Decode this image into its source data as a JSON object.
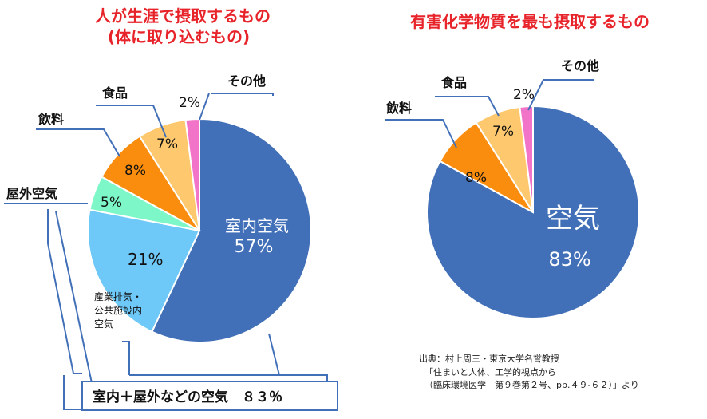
{
  "chart_data": [
    {
      "type": "pie",
      "title": "人が生涯で摂取するもの",
      "subtitle": "(体に取り込むもの)",
      "slices": [
        {
          "label": "室内空気",
          "value": 57,
          "value_label": "57%",
          "color": "#4270b8"
        },
        {
          "label": "産業排気・公共施設内空気",
          "value": 21,
          "value_label": "21%",
          "color": "#6ec8f8"
        },
        {
          "label": "屋外空気",
          "value": 5,
          "value_label": "5%",
          "color": "#7df7c8"
        },
        {
          "label": "飲料",
          "value": 8,
          "value_label": "8%",
          "color": "#fb8d0e"
        },
        {
          "label": "食品",
          "value": 7,
          "value_label": "7%",
          "color": "#fdc86e"
        },
        {
          "label": "その他",
          "value": 2,
          "value_label": "2%",
          "color": "#f274c8"
        }
      ],
      "annotation": "室内＋屋外などの空気　８３％"
    },
    {
      "type": "pie",
      "title": "有害化学物質を最も摂取するもの",
      "slices": [
        {
          "label": "空気",
          "value": 83,
          "value_label": "83%",
          "color": "#4270b8"
        },
        {
          "label": "飲料",
          "value": 8,
          "value_label": "8%",
          "color": "#fb8d0e"
        },
        {
          "label": "食品",
          "value": 7,
          "value_label": "7%",
          "color": "#fdc86e"
        },
        {
          "label": "その他",
          "value": 2,
          "value_label": "2%",
          "color": "#f274c8"
        }
      ]
    }
  ],
  "source": {
    "line1": "出典：村上周三・東京大学名誉教授",
    "line2": "「住まいと人体、工学的視点から",
    "line3": "（臨床環境医学　第９巻第２号、pp.４９-６２）」より"
  }
}
